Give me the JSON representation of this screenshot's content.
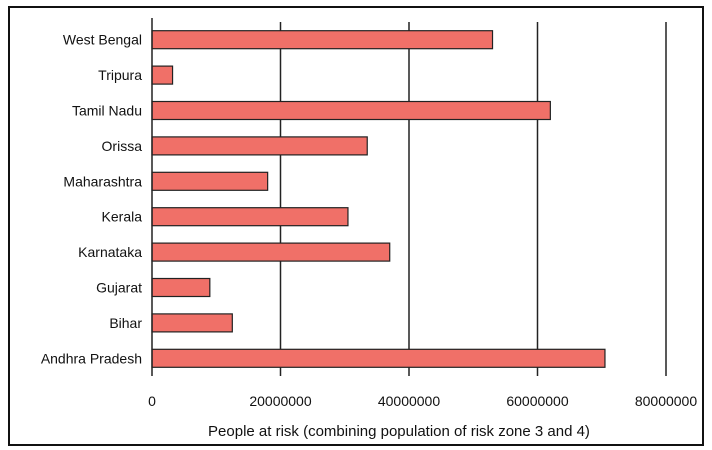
{
  "chart_data": {
    "type": "bar",
    "orientation": "horizontal",
    "categories": [
      "West Bengal",
      "Tripura",
      "Tamil Nadu",
      "Orissa",
      "Maharashtra",
      "Kerala",
      "Karnataka",
      "Gujarat",
      "Bihar",
      "Andhra Pradesh"
    ],
    "values": [
      53000000,
      3200000,
      62000000,
      33500000,
      18000000,
      30500000,
      37000000,
      9000000,
      12500000,
      70500000
    ],
    "xlabel": "People at risk (combining population of risk zone 3 and 4)",
    "ylabel": "",
    "title": "",
    "xlim": [
      0,
      80000000
    ],
    "xticks": [
      "0",
      "20000000",
      "40000000",
      "60000000",
      "80000000"
    ],
    "grid": "vertical",
    "colors": {
      "bar_fill": "#f07068",
      "bar_stroke": "#222222",
      "grid": "#222222"
    }
  }
}
